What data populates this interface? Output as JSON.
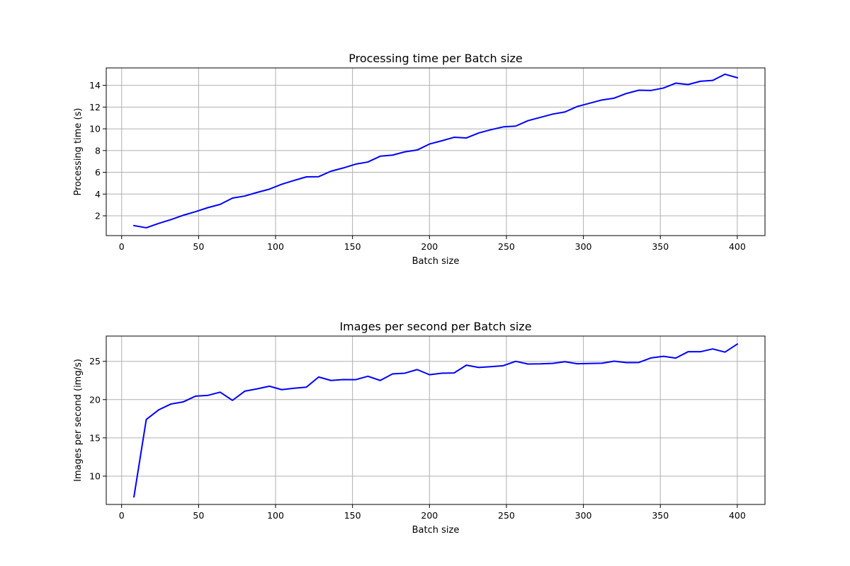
{
  "chart_data": [
    {
      "type": "line",
      "title": "Processing time per Batch size",
      "xlabel": "Batch size",
      "ylabel": "Processing time (s)",
      "xlim": [
        -10,
        418
      ],
      "ylim": [
        0.18,
        15.6
      ],
      "xticks": [
        0,
        50,
        100,
        150,
        200,
        250,
        300,
        350,
        400
      ],
      "yticks": [
        2,
        4,
        6,
        8,
        10,
        12,
        14
      ],
      "grid": true,
      "color": "#0000ff",
      "x": [
        8,
        16,
        24,
        32,
        40,
        48,
        56,
        64,
        72,
        80,
        88,
        96,
        104,
        112,
        120,
        128,
        136,
        144,
        152,
        160,
        168,
        176,
        184,
        192,
        200,
        208,
        216,
        224,
        232,
        240,
        248,
        256,
        264,
        272,
        280,
        288,
        296,
        304,
        312,
        320,
        328,
        336,
        344,
        352,
        360,
        368,
        376,
        384,
        392,
        400
      ],
      "y": [
        1.1,
        0.9,
        1.3,
        1.65,
        2.05,
        2.38,
        2.75,
        3.05,
        3.63,
        3.82,
        4.15,
        4.45,
        4.9,
        5.25,
        5.58,
        5.6,
        6.1,
        6.4,
        6.75,
        6.95,
        7.48,
        7.58,
        7.88,
        8.05,
        8.6,
        8.9,
        9.22,
        9.16,
        9.62,
        9.92,
        10.18,
        10.25,
        10.75,
        11.05,
        11.35,
        11.55,
        12.05,
        12.35,
        12.65,
        12.82,
        13.25,
        13.55,
        13.53,
        13.75,
        14.2,
        14.07,
        14.37,
        14.45,
        15.02,
        14.7
      ]
    },
    {
      "type": "line",
      "title": "Images per second per Batch size",
      "xlabel": "Batch size",
      "ylabel": "Images per second (img/s)",
      "xlim": [
        -10,
        418
      ],
      "ylim": [
        6.3,
        28.3
      ],
      "xticks": [
        0,
        50,
        100,
        150,
        200,
        250,
        300,
        350,
        400
      ],
      "yticks": [
        10,
        15,
        20,
        25
      ],
      "grid": true,
      "color": "#0000ff",
      "x": [
        8,
        16,
        24,
        32,
        40,
        48,
        56,
        64,
        72,
        80,
        88,
        96,
        104,
        112,
        120,
        128,
        136,
        144,
        152,
        160,
        168,
        176,
        184,
        192,
        200,
        208,
        216,
        224,
        232,
        240,
        248,
        256,
        264,
        272,
        280,
        288,
        296,
        304,
        312,
        320,
        328,
        336,
        344,
        352,
        360,
        368,
        376,
        384,
        392,
        400
      ],
      "y": [
        7.3,
        17.4,
        18.65,
        19.42,
        19.7,
        20.45,
        20.55,
        20.97,
        19.9,
        21.1,
        21.4,
        21.75,
        21.3,
        21.48,
        21.62,
        22.95,
        22.5,
        22.62,
        22.6,
        23.05,
        22.5,
        23.35,
        23.45,
        23.92,
        23.25,
        23.45,
        23.48,
        24.5,
        24.2,
        24.3,
        24.43,
        25.0,
        24.65,
        24.67,
        24.73,
        24.95,
        24.68,
        24.72,
        24.75,
        25.02,
        24.83,
        24.85,
        25.45,
        25.65,
        25.42,
        26.25,
        26.25,
        26.62,
        26.2,
        27.25
      ]
    }
  ]
}
